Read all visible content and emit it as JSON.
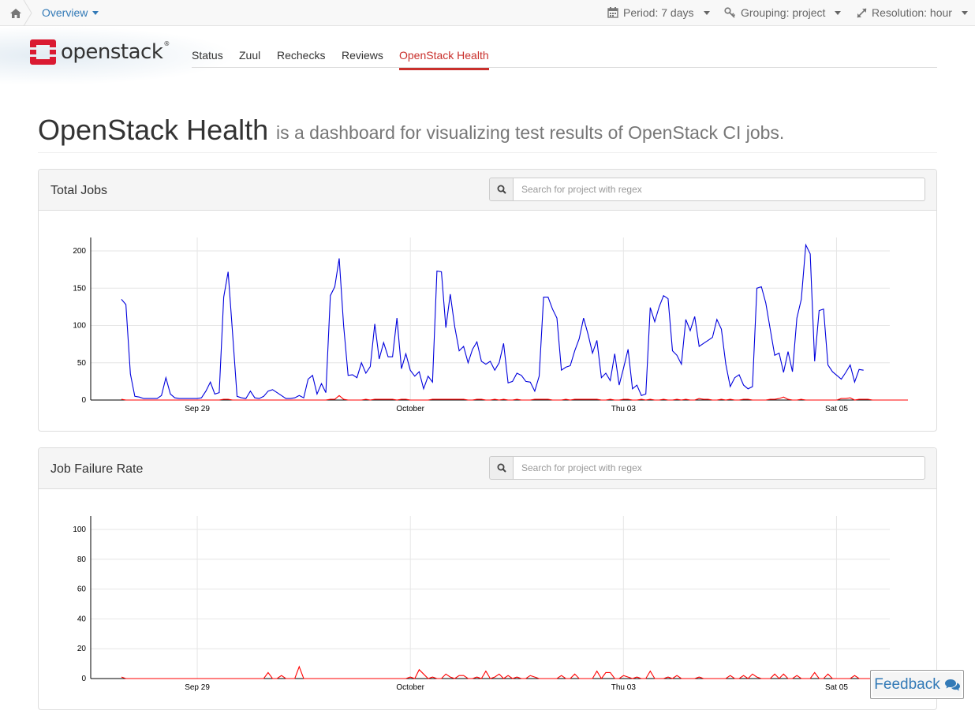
{
  "breadcrumb": {
    "home_icon": "home-icon",
    "current": "Overview"
  },
  "controls": {
    "period": "Period: 7 days",
    "grouping": "Grouping: project",
    "resolution": "Resolution: hour"
  },
  "brand": {
    "name": "openstack",
    "reg": "®"
  },
  "nav": {
    "items": [
      "Status",
      "Zuul",
      "Rechecks",
      "Reviews",
      "OpenStack Health"
    ],
    "active": "OpenStack Health"
  },
  "heading": {
    "title": "OpenStack Health",
    "subtitle": "is a dashboard for visualizing test results of OpenStack CI jobs."
  },
  "panels": {
    "jobs": {
      "title": "Total Jobs",
      "search_placeholder": "Search for project with regex"
    },
    "failure": {
      "title": "Job Failure Rate",
      "search_placeholder": "Search for project with regex"
    }
  },
  "feedback": {
    "label": "Feedback",
    "icon": "comments-icon"
  },
  "colors": {
    "series_total": "#0000dd",
    "series_failed": "#ff0000",
    "active_nav": "#c9302c",
    "link": "#337ab7"
  },
  "chart_data": [
    {
      "type": "line",
      "title": "Total Jobs",
      "x_ticks": [
        "Sep 29",
        "October",
        "Thu 03",
        "Sat 05"
      ],
      "x_tick_hours": [
        0,
        72,
        144,
        216
      ],
      "xlim_hours": [
        -36,
        234
      ],
      "ylim": [
        0,
        200
      ],
      "y_ticks": [
        0,
        50,
        100,
        150,
        200
      ],
      "grid": true,
      "series": [
        {
          "color": "#0000dd",
          "values": [
            135,
            128,
            35,
            5,
            4,
            2,
            2,
            2,
            2,
            6,
            30,
            8,
            3,
            2,
            2,
            2,
            2,
            2,
            3,
            12,
            24,
            8,
            10,
            138,
            172,
            90,
            5,
            3,
            2,
            12,
            3,
            2,
            5,
            12,
            14,
            10,
            6,
            2,
            2,
            3,
            6,
            3,
            28,
            33,
            8,
            22,
            10,
            140,
            152,
            190,
            100,
            33,
            34,
            30,
            50,
            36,
            45,
            102,
            55,
            77,
            58,
            58,
            110,
            42,
            62,
            40,
            32,
            38,
            15,
            32,
            24,
            173,
            172,
            97,
            142,
            98,
            66,
            72,
            50,
            68,
            78,
            52,
            48,
            52,
            40,
            50,
            76,
            23,
            25,
            36,
            33,
            25,
            24,
            12,
            32,
            138,
            138,
            122,
            110,
            40,
            44,
            46,
            66,
            82,
            110,
            88,
            63,
            80,
            30,
            36,
            26,
            62,
            20,
            43,
            68,
            15,
            20,
            6,
            8,
            124,
            105,
            125,
            140,
            136,
            66,
            60,
            48,
            108,
            93,
            112,
            72,
            76,
            80,
            84,
            108,
            95,
            48,
            18,
            30,
            34,
            20,
            15,
            18,
            150,
            152,
            130,
            95,
            60,
            63,
            37,
            65,
            38,
            110,
            135,
            208,
            196,
            52,
            120,
            122,
            47,
            38,
            33,
            28,
            37,
            47,
            24,
            41,
            40
          ]
        },
        {
          "color": "#ff0000",
          "values": [
            1,
            0,
            0,
            0,
            0,
            0,
            0,
            0,
            0,
            0,
            0,
            0,
            0,
            0,
            0,
            0,
            0,
            0,
            0,
            0,
            0,
            0,
            0,
            1,
            1,
            0,
            0,
            0,
            0,
            0,
            0,
            0,
            0,
            0,
            0,
            0,
            0,
            0,
            0,
            0,
            0,
            0,
            0,
            0,
            0,
            0,
            0,
            1,
            1,
            6,
            1,
            0,
            0,
            0,
            0,
            1,
            0,
            1,
            1,
            1,
            1,
            1,
            0,
            1,
            1,
            0,
            0,
            0,
            0,
            0,
            1,
            1,
            1,
            1,
            1,
            1,
            1,
            1,
            0,
            0,
            1,
            1,
            0,
            0,
            1,
            0,
            1,
            0,
            0,
            1,
            0,
            0,
            0,
            1,
            1,
            1,
            1,
            0,
            0,
            0,
            1,
            0,
            1,
            1,
            1,
            1,
            1,
            1,
            0,
            0,
            1,
            0,
            0,
            1,
            1,
            0,
            0,
            1,
            0,
            1,
            0,
            0,
            1,
            0,
            0,
            1,
            0,
            1,
            0,
            0,
            2,
            1,
            1,
            0,
            0,
            1,
            0,
            1,
            0,
            0,
            1,
            1,
            0,
            0,
            0,
            0,
            1,
            1,
            2,
            4,
            1,
            0,
            0,
            1,
            0,
            0,
            0,
            0,
            0,
            0,
            0,
            0,
            2,
            2,
            3,
            0,
            1,
            1,
            1,
            0,
            0,
            0,
            0,
            0,
            0,
            0,
            0,
            0
          ]
        }
      ]
    },
    {
      "type": "line",
      "title": "Job Failure Rate",
      "x_ticks": [
        "Sep 29",
        "October",
        "Thu 03",
        "Sat 05"
      ],
      "x_tick_hours": [
        0,
        72,
        144,
        216
      ],
      "xlim_hours": [
        -36,
        234
      ],
      "ylim": [
        0,
        100
      ],
      "y_ticks": [
        0,
        20,
        40,
        60,
        80,
        100
      ],
      "grid": true,
      "series": [
        {
          "color": "#ff0000",
          "values": [
            1,
            0,
            0,
            0,
            0,
            0,
            0,
            0,
            0,
            0,
            0,
            0,
            0,
            0,
            0,
            0,
            0,
            0,
            0,
            0,
            0,
            0,
            0,
            0,
            0,
            0,
            0,
            0,
            0,
            0,
            0,
            0,
            0,
            4,
            0,
            0,
            2,
            0,
            0,
            0,
            8,
            0,
            0,
            0,
            0,
            0,
            0,
            0,
            0,
            0,
            0,
            0,
            0,
            0,
            0,
            0,
            0,
            0,
            0,
            0,
            0,
            0,
            0,
            0,
            0,
            1,
            0,
            6,
            3,
            0,
            1,
            0,
            0,
            3,
            1,
            0,
            2,
            2,
            0,
            0,
            1,
            0,
            5,
            0,
            1,
            3,
            0,
            2,
            0,
            1,
            0,
            0,
            2,
            1,
            0,
            0,
            0,
            0,
            0,
            2,
            0,
            0,
            3,
            0,
            0,
            0,
            0,
            5,
            0,
            4,
            4,
            0,
            0,
            2,
            1,
            0,
            1,
            0,
            0,
            5,
            0,
            0,
            0,
            1,
            0,
            2,
            0,
            0,
            0,
            0,
            1,
            0,
            0,
            0,
            0,
            0,
            0,
            2,
            0,
            0,
            2,
            0,
            3,
            1,
            0,
            0,
            0,
            3,
            0,
            3,
            0,
            0,
            2,
            0,
            0,
            0,
            4,
            0,
            0,
            3,
            0,
            0,
            0,
            0,
            0,
            2,
            0,
            0,
            0,
            0,
            0,
            0,
            0,
            0,
            0,
            0,
            0,
            0,
            0,
            2,
            0,
            1,
            0,
            0,
            0,
            0,
            1,
            0,
            0,
            0,
            0,
            0,
            0,
            0,
            0,
            0,
            0,
            0,
            0,
            0,
            0,
            0,
            0,
            0,
            0,
            0,
            0,
            0,
            0,
            0,
            0,
            0,
            0,
            0,
            0,
            0,
            0,
            0,
            0,
            0,
            0,
            0,
            0,
            0,
            0,
            0,
            0,
            0,
            0
          ]
        }
      ]
    }
  ]
}
